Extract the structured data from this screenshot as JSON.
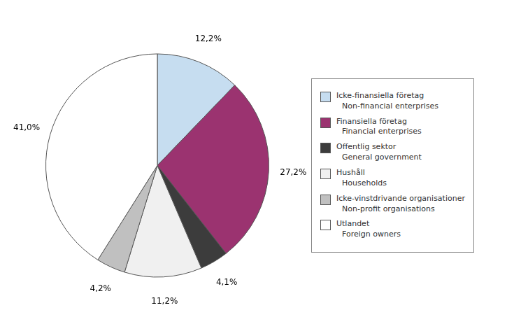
{
  "chart_data": {
    "type": "pie",
    "categories": [
      "Icke-finansiella företag\nNon-financial enterprises",
      "Finansiella företag\nFinancial enterprises",
      "Offentlig sektor\nGeneral government",
      "Hushåll\nHouseholds",
      "Icke-vinstdrivande organisationer\nNon-profit organisations",
      "Utlandet\nForeign owners"
    ],
    "values": [
      12.2,
      27.2,
      4.1,
      11.2,
      4.2,
      41.0
    ],
    "value_labels": [
      "12,2%",
      "27,2%",
      "4,1%",
      "11,2%",
      "4,2%",
      "41,0%"
    ],
    "colors": [
      "#c6ddf0",
      "#9b3370",
      "#3c3c3c",
      "#f0f0f0",
      "#c0c0c0",
      "#ffffff"
    ],
    "legend": "right",
    "data_labels": true
  }
}
